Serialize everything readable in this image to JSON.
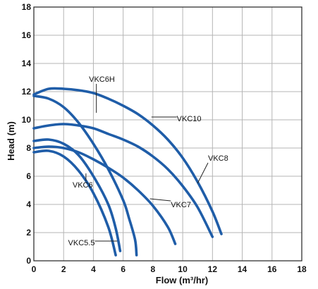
{
  "chart_data": {
    "type": "line",
    "xlabel": "Flow (m³/hr)",
    "ylabel": "Head (m)",
    "xlim": [
      0,
      18
    ],
    "ylim": [
      0,
      18
    ],
    "x_ticks": [
      0,
      2,
      4,
      6,
      8,
      10,
      12,
      14,
      16,
      18
    ],
    "y_ticks": [
      0,
      2,
      4,
      6,
      8,
      10,
      12,
      14,
      16,
      18
    ],
    "grid": true,
    "line_color": "#1f5da8",
    "grid_color": "#b5b5b5",
    "series": [
      {
        "name": "VKC6H",
        "x": [
          0,
          1,
          2,
          3,
          4,
          5,
          6,
          6.4,
          6.8,
          6.9
        ],
        "y": [
          11.7,
          11.5,
          10.9,
          9.8,
          8.3,
          6.5,
          4.3,
          3.0,
          1.5,
          0.4
        ]
      },
      {
        "name": "VKC10",
        "x": [
          0,
          1,
          2,
          3,
          4,
          5,
          6,
          7,
          8,
          9,
          10,
          11,
          12,
          12.6
        ],
        "y": [
          11.8,
          12.2,
          12.2,
          12.1,
          11.9,
          11.5,
          11.0,
          10.4,
          9.6,
          8.6,
          7.3,
          5.6,
          3.5,
          1.9
        ]
      },
      {
        "name": "VKC8",
        "x": [
          0,
          1,
          2,
          3,
          4,
          5,
          6,
          7,
          8,
          9,
          10,
          11,
          12
        ],
        "y": [
          9.4,
          9.6,
          9.7,
          9.6,
          9.4,
          9.0,
          8.6,
          8.1,
          7.4,
          6.5,
          5.3,
          3.8,
          1.7
        ]
      },
      {
        "name": "VKC7",
        "x": [
          0,
          1,
          2,
          3,
          4,
          5,
          6,
          7,
          8,
          9,
          9.5
        ],
        "y": [
          8.0,
          8.1,
          8.0,
          7.7,
          7.2,
          6.6,
          5.9,
          5.0,
          3.9,
          2.4,
          1.2
        ]
      },
      {
        "name": "VKC6",
        "x": [
          0,
          1,
          2,
          3,
          4,
          5,
          5.5,
          5.8
        ],
        "y": [
          8.5,
          8.6,
          8.3,
          7.5,
          6.0,
          4.0,
          2.3,
          0.7
        ]
      },
      {
        "name": "VKC5.5",
        "x": [
          0,
          1,
          2,
          3,
          4,
          5,
          5.5
        ],
        "y": [
          7.7,
          7.8,
          7.4,
          6.4,
          4.8,
          2.4,
          0.4
        ]
      }
    ],
    "annotations": [
      {
        "text": "VKC6H",
        "x": 3.7,
        "y": 12.7,
        "pointer_to": [
          4.2,
          10.5
        ]
      },
      {
        "text": "VKC10",
        "x": 9.6,
        "y": 9.9,
        "pointer_to": [
          7.9,
          10.2
        ]
      },
      {
        "text": "VKC8",
        "x": 11.7,
        "y": 7.1,
        "pointer_to": [
          11.0,
          5.5
        ]
      },
      {
        "text": "VKC7",
        "x": 9.2,
        "y": 3.8,
        "pointer_to": [
          7.8,
          4.4
        ]
      },
      {
        "text": "VKC6",
        "x": 2.6,
        "y": 5.2,
        "pointer_to": [
          3.5,
          6.2
        ]
      },
      {
        "text": "VKC5.5",
        "x": 2.3,
        "y": 1.1,
        "pointer_to": [
          5.6,
          1.4
        ]
      }
    ]
  }
}
